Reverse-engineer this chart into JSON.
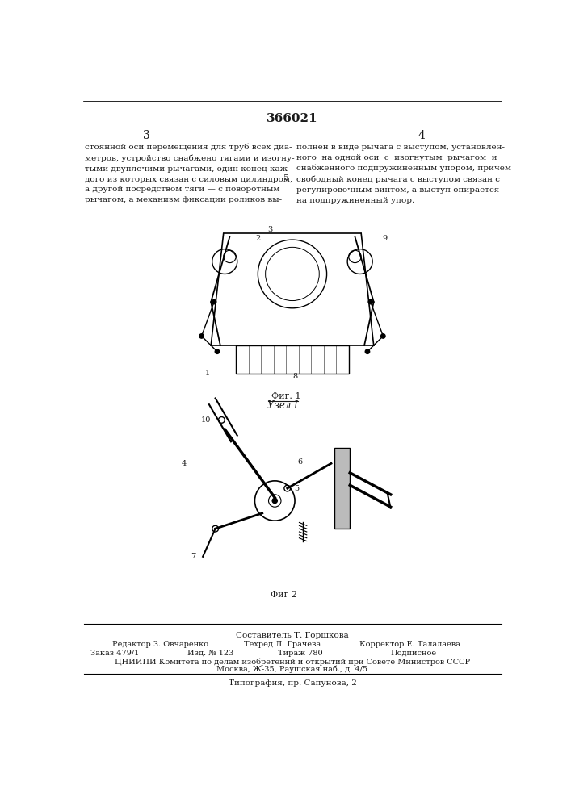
{
  "patent_number": "366021",
  "col_left_num": "3",
  "col_right_num": "4",
  "text_left": "стоянной оси перемещения для труб всех диа-\nметров, устройство снабжено тягами и изогну-\nтыми двуплечими рычагами, один конец каж-\nдого из которых связан с силовым цилиндром,\nа другой посредством тяги — с поворотным\nрычагом, а механизм фиксации роликов вы-",
  "text_right": "полнен в виде рычага с выступом, установлен-\nного  на одной оси  с  изогнутым  рычагом  и\nснабженного подпружиненным упором, причем\nсвободный конец рычага с выступом связан с\nрегулировочным винтом, а выступ опирается\nна подпружиненный упор.",
  "line_num_5": "5",
  "fig1_label": "Фиг. 1",
  "fig2_label": "Фиг 2",
  "node_label": "Узел I",
  "staff_line1": "Составитель Т. Горшкова",
  "staff_line2_col1": "Редактор З. Овчаренко",
  "staff_line2_col2": "Техред Л. Грачева",
  "staff_line2_col3": "Корректор Е. Талалаева",
  "staff_line3_col1": "Заказ 479/1",
  "staff_line3_col2": "Изд. № 123",
  "staff_line3_col3": "Тираж 780",
  "staff_line3_col4": "Подписное",
  "staff_line4": "ЦНИИПИ Комитета по делам изобретений и открытий при Совете Министров СССР",
  "staff_line5": "Москва, Ж-35, Раушская наб., д. 4/5",
  "staff_line6": "Типография, пр. Сапунова, 2",
  "bg_color": "#ffffff",
  "text_color": "#1a1a1a",
  "line_color": "#000000"
}
